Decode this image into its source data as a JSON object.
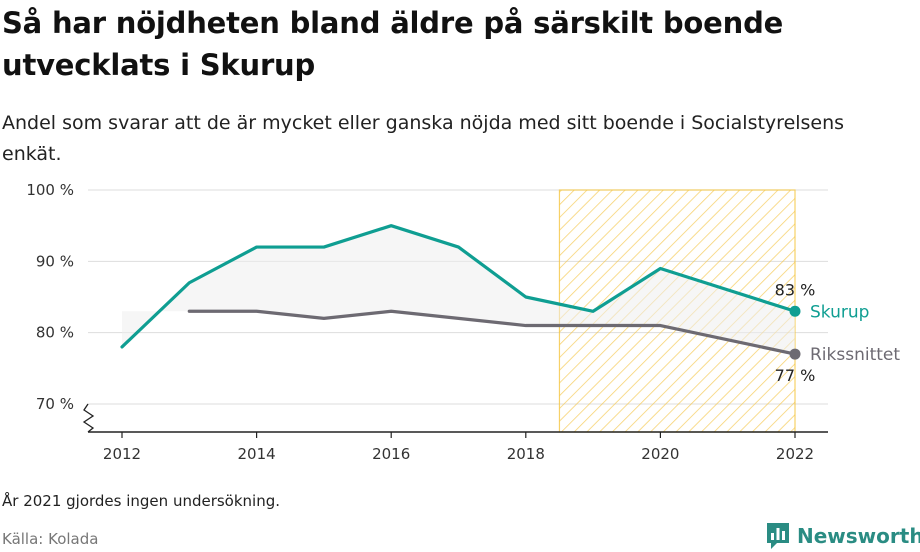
{
  "title": "Så har nöjdheten bland äldre på särskilt boende utvecklats i Skurup",
  "subtitle": "Andel som svarar att de är mycket eller ganska nöjda med sitt boende i Socialstyrelsens enkät.",
  "note": "År 2021 gjordes ingen undersökning.",
  "source": "Källa: Kolada",
  "brand": "Newsworthy",
  "colors": {
    "skurup": "#0f9e92",
    "riks": "#6d6a72",
    "highlight": "#f5c542",
    "fill": "#eeeeee",
    "grid": "#dddddd"
  },
  "chart_data": {
    "type": "line",
    "x": [
      2012,
      2013,
      2014,
      2015,
      2016,
      2017,
      2018,
      2019,
      2020,
      2022
    ],
    "series": [
      {
        "name": "Skurup",
        "values": [
          78,
          87,
          92,
          92,
          95,
          92,
          85,
          83,
          89,
          83
        ],
        "end_label": "83 %"
      },
      {
        "name": "Riksnittet",
        "display_name": "Rikssnittet",
        "values": [
          null,
          83,
          83,
          82,
          83,
          82,
          81,
          81,
          81,
          77
        ],
        "end_label": "77 %"
      }
    ],
    "xlim": [
      2011.6,
      2022.5
    ],
    "ylim": [
      70,
      100
    ],
    "y_ticks": [
      70,
      80,
      90,
      100
    ],
    "y_tick_labels": [
      "70 %",
      "80 %",
      "90 %",
      "100 %"
    ],
    "x_ticks": [
      2012,
      2014,
      2016,
      2018,
      2020,
      2022
    ],
    "x_tick_labels": [
      "2012",
      "2014",
      "2016",
      "2018",
      "2020",
      "2022"
    ],
    "highlight_range": [
      2018.5,
      2022
    ],
    "broken_axis": true,
    "grid": true
  }
}
